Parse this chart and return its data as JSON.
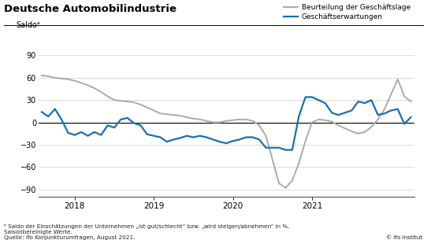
{
  "title": "Deutsche Automobilindustrie",
  "ylabel": "Saldoᵃ",
  "legend_lage": "Beurteilung der Geschäftslage",
  "legend_erwartungen": "Geschäftserwartungen",
  "footnote1": "ᵃ Saldo der Einschätzungen der Unternehmen „ist gut/schlecht“ bzw. „wird steigen/abnehmen“ in %.",
  "footnote2": "Saisonbereinigte Werte.",
  "footnote3": "Quelle: ifo Konjunkturumfragen, August 2021.",
  "footnote4": "© ifo Institut",
  "ylim": [
    -100,
    100
  ],
  "yticks": [
    -90,
    -60,
    -30,
    0,
    30,
    60,
    90
  ],
  "color_lage": "#aaaaaa",
  "color_erwartungen": "#1a6faf",
  "lage": [
    63,
    62,
    60,
    59,
    58,
    56,
    53,
    50,
    46,
    41,
    35,
    30,
    29,
    28,
    27,
    24,
    20,
    16,
    12,
    11,
    10,
    9,
    7,
    5,
    4,
    2,
    0,
    0,
    2,
    3,
    4,
    4,
    2,
    -4,
    -18,
    -50,
    -82,
    -88,
    -78,
    -55,
    -25,
    0,
    4,
    3,
    1,
    -4,
    -8,
    -12,
    -15,
    -13,
    -6,
    4,
    18,
    38,
    58,
    35,
    28
  ],
  "erwartungen": [
    14,
    8,
    18,
    4,
    -14,
    -17,
    -13,
    -18,
    -13,
    -17,
    -4,
    -7,
    4,
    6,
    -1,
    -4,
    -16,
    -18,
    -20,
    -26,
    -23,
    -21,
    -18,
    -20,
    -18,
    -20,
    -23,
    -26,
    -28,
    -25,
    -23,
    -20,
    -20,
    -23,
    -34,
    -34,
    -34,
    -37,
    -37,
    8,
    34,
    34,
    30,
    26,
    13,
    10,
    13,
    16,
    28,
    26,
    30,
    10,
    12,
    16,
    18,
    -2,
    7
  ],
  "n_months": 57,
  "xtick_positions": [
    5,
    17,
    29,
    41,
    53
  ],
  "xtick_labels": [
    "2018",
    "2019",
    "2020",
    "2021",
    ""
  ]
}
